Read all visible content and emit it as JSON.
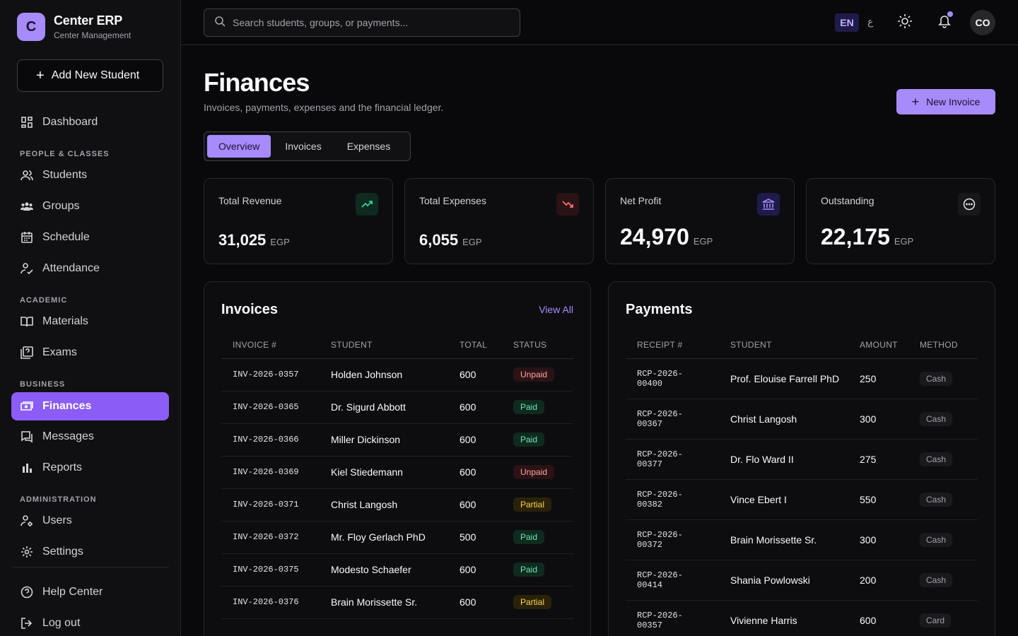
{
  "brand": {
    "logo_letter": "C",
    "name": "Center ERP",
    "subtitle": "Center Management"
  },
  "sidebar": {
    "add_button": "Add New Student",
    "dashboard": "Dashboard",
    "sections": {
      "people": "PEOPLE & CLASSES",
      "academic": "ACADEMIC",
      "business": "BUSINESS",
      "admin": "ADMINISTRATION"
    },
    "items": {
      "students": "Students",
      "groups": "Groups",
      "schedule": "Schedule",
      "attendance": "Attendance",
      "materials": "Materials",
      "exams": "Exams",
      "finances": "Finances",
      "messages": "Messages",
      "reports": "Reports",
      "users": "Users",
      "settings": "Settings",
      "help": "Help Center",
      "logout": "Log out"
    }
  },
  "topbar": {
    "search_placeholder": "Search students, groups, or payments...",
    "lang_active": "EN",
    "lang_alt": "ع",
    "avatar_initials": "CO"
  },
  "page": {
    "title": "Finances",
    "subtitle": "Invoices, payments, expenses and the financial ledger.",
    "new_invoice": "New Invoice",
    "tabs": [
      "Overview",
      "Invoices",
      "Expenses"
    ]
  },
  "stats": [
    {
      "label": "Total Revenue",
      "value": "31,025",
      "currency": "EGP",
      "icon": "trending-up-icon",
      "color": "#34d399"
    },
    {
      "label": "Total Expenses",
      "value": "6,055",
      "currency": "EGP",
      "icon": "trending-down-icon",
      "color": "#f87171"
    },
    {
      "label": "Net Profit",
      "value": "24,970",
      "currency": "EGP",
      "icon": "bank-icon",
      "color": "#a78bfa"
    },
    {
      "label": "Outstanding",
      "value": "22,175",
      "currency": "EGP",
      "icon": "more-circle-icon",
      "color": "#a1a1aa"
    }
  ],
  "invoices": {
    "title": "Invoices",
    "view_all": "View All",
    "columns": [
      "INVOICE #",
      "STUDENT",
      "TOTAL",
      "STATUS"
    ],
    "rows": [
      {
        "id": "INV-2026-0357",
        "student": "Holden Johnson",
        "total": "600",
        "status": "Unpaid"
      },
      {
        "id": "INV-2026-0365",
        "student": "Dr. Sigurd Abbott",
        "total": "600",
        "status": "Paid"
      },
      {
        "id": "INV-2026-0366",
        "student": "Miller Dickinson",
        "total": "600",
        "status": "Paid"
      },
      {
        "id": "INV-2026-0369",
        "student": "Kiel Stiedemann",
        "total": "600",
        "status": "Unpaid"
      },
      {
        "id": "INV-2026-0371",
        "student": "Christ Langosh",
        "total": "600",
        "status": "Partial"
      },
      {
        "id": "INV-2026-0372",
        "student": "Mr. Floy Gerlach PhD",
        "total": "500",
        "status": "Paid"
      },
      {
        "id": "INV-2026-0375",
        "student": "Modesto Schaefer",
        "total": "600",
        "status": "Paid"
      },
      {
        "id": "INV-2026-0376",
        "student": "Brain Morissette Sr.",
        "total": "600",
        "status": "Partial"
      }
    ]
  },
  "payments": {
    "title": "Payments",
    "columns": [
      "RECEIPT #",
      "STUDENT",
      "AMOUNT",
      "METHOD"
    ],
    "rows": [
      {
        "receipt_a": "RCP-2026-",
        "receipt_b": "00400",
        "student": "Prof. Elouise Farrell PhD",
        "amount": "250",
        "method": "Cash"
      },
      {
        "receipt_a": "RCP-2026-",
        "receipt_b": "00367",
        "student": "Christ Langosh",
        "amount": "300",
        "method": "Cash"
      },
      {
        "receipt_a": "RCP-2026-",
        "receipt_b": "00377",
        "student": "Dr. Flo Ward II",
        "amount": "275",
        "method": "Cash"
      },
      {
        "receipt_a": "RCP-2026-",
        "receipt_b": "00382",
        "student": "Vince Ebert I",
        "amount": "550",
        "method": "Cash"
      },
      {
        "receipt_a": "RCP-2026-",
        "receipt_b": "00372",
        "student": "Brain Morissette Sr.",
        "amount": "300",
        "method": "Cash"
      },
      {
        "receipt_a": "RCP-2026-",
        "receipt_b": "00414",
        "student": "Shania Powlowski",
        "amount": "200",
        "method": "Cash"
      },
      {
        "receipt_a": "RCP-2026-",
        "receipt_b": "00357",
        "student": "Vivienne Harris",
        "amount": "600",
        "method": "Card"
      }
    ]
  }
}
